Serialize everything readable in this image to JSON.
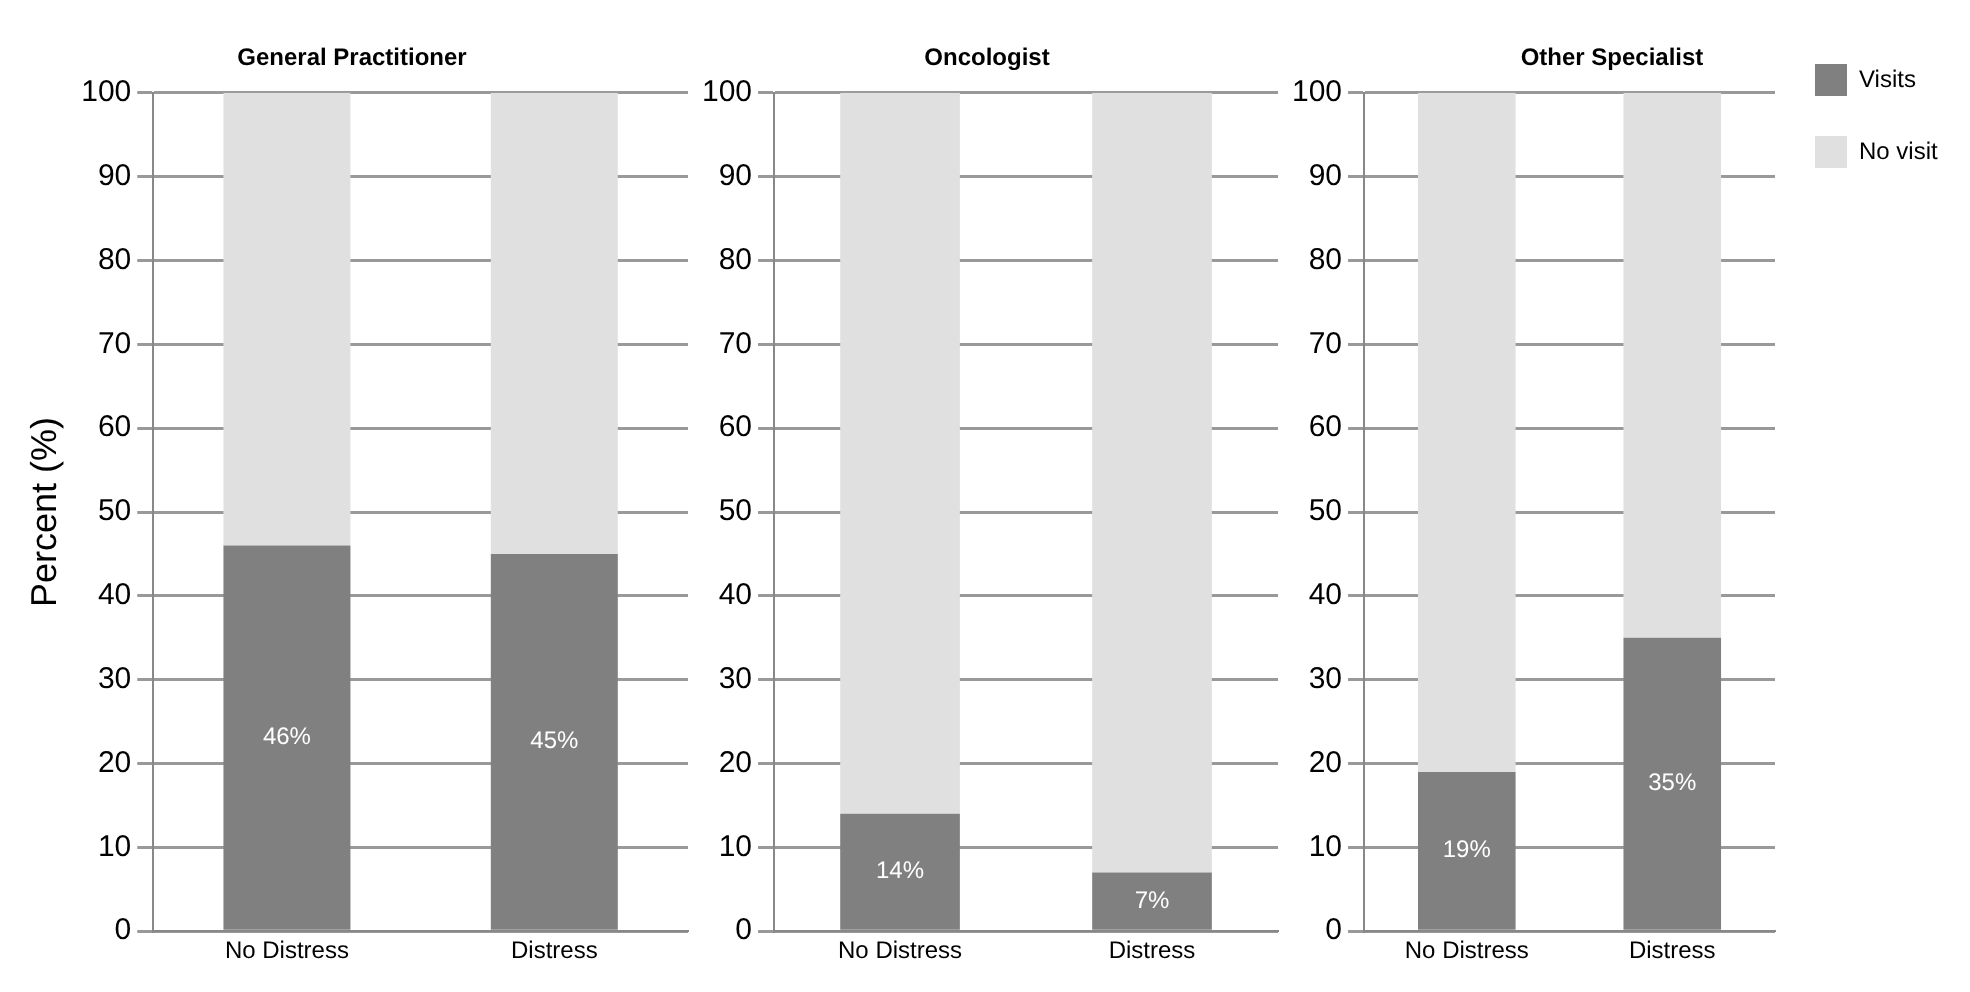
{
  "chart_data": [
    {
      "type": "bar",
      "title": "General Practitioner",
      "ylabel": "Percent (%)",
      "categories": [
        "No Distress",
        "Distress"
      ],
      "stacked": true,
      "ylim": [
        0,
        100
      ],
      "yticks": [
        0,
        10,
        20,
        30,
        40,
        50,
        60,
        70,
        80,
        90,
        100
      ],
      "grid": "y",
      "legend": false,
      "series": [
        {
          "color": "#808080",
          "values": [
            46,
            45
          ],
          "value_labels": [
            "46%",
            "45%"
          ]
        },
        {
          "color": "#e0e0e0",
          "values": [
            54,
            55
          ]
        }
      ]
    },
    {
      "type": "bar",
      "title": "Oncologist",
      "categories": [
        "No Distress",
        "Distress"
      ],
      "stacked": true,
      "ylim": [
        0,
        100
      ],
      "yticks": [
        0,
        10,
        20,
        30,
        40,
        50,
        60,
        70,
        80,
        90,
        100
      ],
      "grid": "y",
      "legend": false,
      "series": [
        {
          "color": "#808080",
          "values": [
            14,
            7
          ],
          "value_labels": [
            "14%",
            "7%"
          ]
        },
        {
          "color": "#e0e0e0",
          "values": [
            86,
            93
          ]
        }
      ]
    },
    {
      "type": "bar",
      "title": "Other Specialist",
      "categories": [
        "No Distress",
        "Distress"
      ],
      "stacked": true,
      "ylim": [
        0,
        100
      ],
      "yticks": [
        0,
        10,
        20,
        30,
        40,
        50,
        60,
        70,
        80,
        90,
        100
      ],
      "grid": "y",
      "legend": "right",
      "series": [
        {
          "name": "Visits",
          "color": "#808080",
          "values": [
            19,
            35
          ],
          "value_labels": [
            "19%",
            "35%"
          ]
        },
        {
          "name": "No visit",
          "color": "#e0e0e0",
          "values": [
            81,
            65
          ]
        }
      ]
    }
  ]
}
